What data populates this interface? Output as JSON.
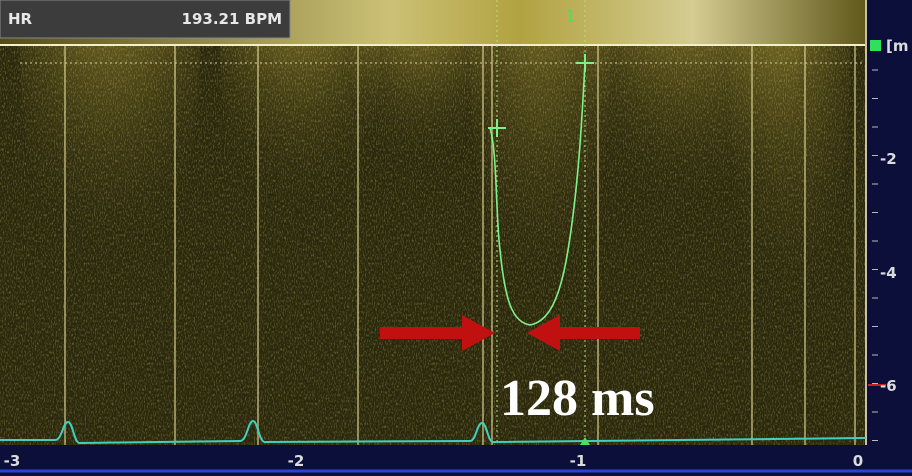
{
  "header": {
    "label": "HR",
    "value": "193.21 BPM"
  },
  "marker": "1",
  "legend_fragment": "[m",
  "right_scale": {
    "labels": [
      "-2",
      "-4",
      "-6"
    ]
  },
  "bottom_scale": {
    "labels": [
      "-3",
      "-2",
      "-1",
      "0"
    ]
  },
  "annotation": "128 ms"
}
